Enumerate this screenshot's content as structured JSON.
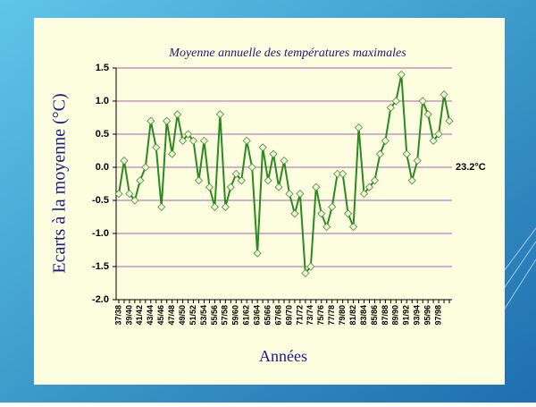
{
  "chart_data": {
    "type": "line",
    "title": "Moyenne annuelle des températures maximales",
    "ylabel": "Ecarts  à  la moyenne  (°C)",
    "xlabel": "Années",
    "annotation": "23.2°C",
    "categories": [
      "37/38",
      null,
      "39/40",
      null,
      "41/42",
      null,
      "43/44",
      null,
      "45/46",
      null,
      "47/48",
      null,
      "49/50",
      null,
      "51/52",
      null,
      "53/54",
      null,
      "55/56",
      null,
      "57/58",
      null,
      "59/60",
      null,
      "61/62",
      null,
      "63/64",
      null,
      "65/66",
      null,
      "67/68",
      null,
      "69/70",
      null,
      "71/72",
      null,
      "73/74",
      null,
      "75/76",
      null,
      "77/78",
      null,
      "79/80",
      null,
      "81/82",
      null,
      "83/84",
      null,
      "85/86",
      null,
      "87/88",
      null,
      "89/90",
      null,
      "91/92",
      null,
      "93/94",
      null,
      "95/96",
      null,
      "97/98",
      null,
      null
    ],
    "values": [
      -0.4,
      0.1,
      -0.4,
      -0.5,
      -0.2,
      0.0,
      0.7,
      0.3,
      -0.6,
      0.7,
      0.2,
      0.8,
      0.4,
      0.5,
      0.4,
      -0.2,
      0.4,
      -0.3,
      -0.6,
      0.8,
      -0.6,
      -0.3,
      -0.1,
      -0.2,
      0.4,
      0.0,
      -1.3,
      0.3,
      -0.2,
      0.2,
      -0.3,
      0.1,
      -0.4,
      -0.7,
      -0.4,
      -1.6,
      -1.5,
      -0.3,
      -0.7,
      -0.9,
      -0.6,
      -0.1,
      -0.1,
      -0.7,
      -0.9,
      0.6,
      -0.4,
      -0.3,
      -0.2,
      0.2,
      0.4,
      0.9,
      1.0,
      1.4,
      0.2,
      -0.2,
      0.1,
      1.0,
      0.8,
      0.4,
      0.5,
      1.1,
      0.7
    ],
    "color": "#2a8a1e",
    "ylim": [
      -2.0,
      1.5
    ],
    "yticks": [
      {
        "value": -2.0,
        "label": "-2.0"
      },
      -1.5,
      {
        "value": -1.0,
        "label": "-1.0"
      },
      -0.5,
      {
        "value": 0.0,
        "label": "0.0"
      },
      0.5,
      {
        "value": 1.0,
        "label": "1.0"
      },
      1.5
    ],
    "grid": true
  }
}
